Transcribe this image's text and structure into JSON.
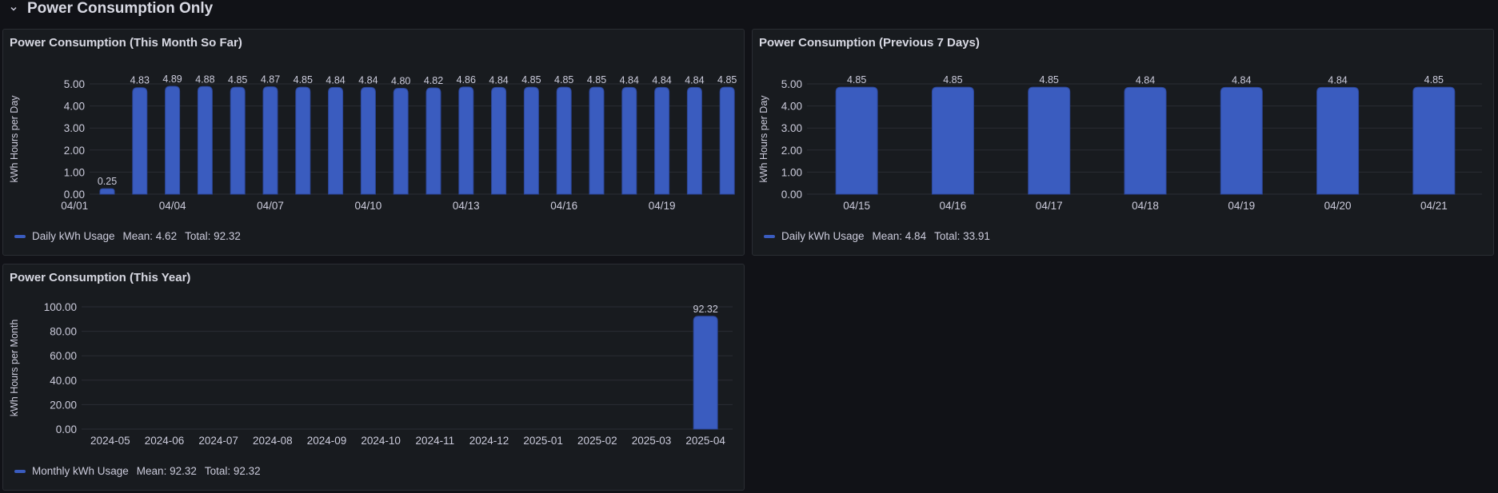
{
  "colors": {
    "bar": "#3a5cbf",
    "bar_stroke": "#2c4699",
    "grid": "#2a2d34",
    "text": "#ccccdc"
  },
  "row": {
    "title": "Power Consumption Only",
    "chevron_icon": "chevron-down-icon"
  },
  "panels": {
    "month": {
      "title": "Power Consumption (This Month So Far)",
      "legend": {
        "label": "Daily kWh Usage",
        "mean": "Mean: 4.62",
        "total": "Total: 92.32"
      }
    },
    "week": {
      "title": "Power Consumption (Previous 7 Days)",
      "legend": {
        "label": "Daily kWh Usage",
        "mean": "Mean: 4.84",
        "total": "Total: 33.91"
      }
    },
    "year": {
      "title": "Power Consumption (This Year)",
      "legend": {
        "label": "Monthly kWh Usage",
        "mean": "Mean: 92.32",
        "total": "Total: 92.32"
      }
    }
  },
  "chart_data": [
    {
      "id": "month",
      "type": "bar",
      "title": "Power Consumption (This Month So Far)",
      "ylabel": "kWh Hours per Day",
      "ylim": [
        0,
        5
      ],
      "yticks": [
        "0.00",
        "1.00",
        "2.00",
        "3.00",
        "4.00",
        "5.00"
      ],
      "x_tick_labels": [
        "04/01",
        "04/04",
        "04/07",
        "04/10",
        "04/13",
        "04/16",
        "04/19"
      ],
      "categories": [
        "04/02",
        "04/03",
        "04/04",
        "04/05",
        "04/06",
        "04/07",
        "04/08",
        "04/09",
        "04/10",
        "04/11",
        "04/12",
        "04/13",
        "04/14",
        "04/15",
        "04/16",
        "04/17",
        "04/18",
        "04/19",
        "04/20",
        "04/21"
      ],
      "series": [
        {
          "name": "Daily kWh Usage",
          "values": [
            0.25,
            4.83,
            4.89,
            4.88,
            4.85,
            4.87,
            4.85,
            4.84,
            4.84,
            4.8,
            4.82,
            4.86,
            4.84,
            4.85,
            4.85,
            4.85,
            4.84,
            4.84,
            4.84,
            4.85
          ]
        }
      ],
      "data_labels": [
        "0.25",
        "4.83",
        "4.89",
        "4.88",
        "4.85",
        "4.87",
        "4.85",
        "4.84",
        "4.84",
        "4.80",
        "4.82",
        "4.86",
        "4.84",
        "4.85",
        "4.85",
        "4.85",
        "4.84",
        "4.84",
        "4.84",
        "4.85"
      ],
      "grid": true
    },
    {
      "id": "week",
      "type": "bar",
      "title": "Power Consumption (Previous 7 Days)",
      "ylabel": "kWh Hours per Day",
      "ylim": [
        0,
        5
      ],
      "yticks": [
        "0.00",
        "1.00",
        "2.00",
        "3.00",
        "4.00",
        "5.00"
      ],
      "categories": [
        "04/15",
        "04/16",
        "04/17",
        "04/18",
        "04/19",
        "04/20",
        "04/21"
      ],
      "series": [
        {
          "name": "Daily kWh Usage",
          "values": [
            4.85,
            4.85,
            4.85,
            4.84,
            4.84,
            4.84,
            4.85
          ]
        }
      ],
      "data_labels": [
        "4.85",
        "4.85",
        "4.85",
        "4.84",
        "4.84",
        "4.84",
        "4.85"
      ],
      "grid": true
    },
    {
      "id": "year",
      "type": "bar",
      "title": "Power Consumption (This Year)",
      "ylabel": "kWh Hours per Month",
      "ylim": [
        0,
        100
      ],
      "yticks": [
        "0.00",
        "20.00",
        "40.00",
        "60.00",
        "80.00",
        "100.00"
      ],
      "categories": [
        "2024-05",
        "2024-06",
        "2024-07",
        "2024-08",
        "2024-09",
        "2024-10",
        "2024-11",
        "2024-12",
        "2025-01",
        "2025-02",
        "2025-03",
        "2025-04"
      ],
      "series": [
        {
          "name": "Monthly kWh Usage",
          "values": [
            0,
            0,
            0,
            0,
            0,
            0,
            0,
            0,
            0,
            0,
            0,
            92.32
          ]
        }
      ],
      "data_labels": [
        "",
        "",
        "",
        "",
        "",
        "",
        "",
        "",
        "",
        "",
        "",
        "92.32"
      ],
      "grid": true
    }
  ]
}
